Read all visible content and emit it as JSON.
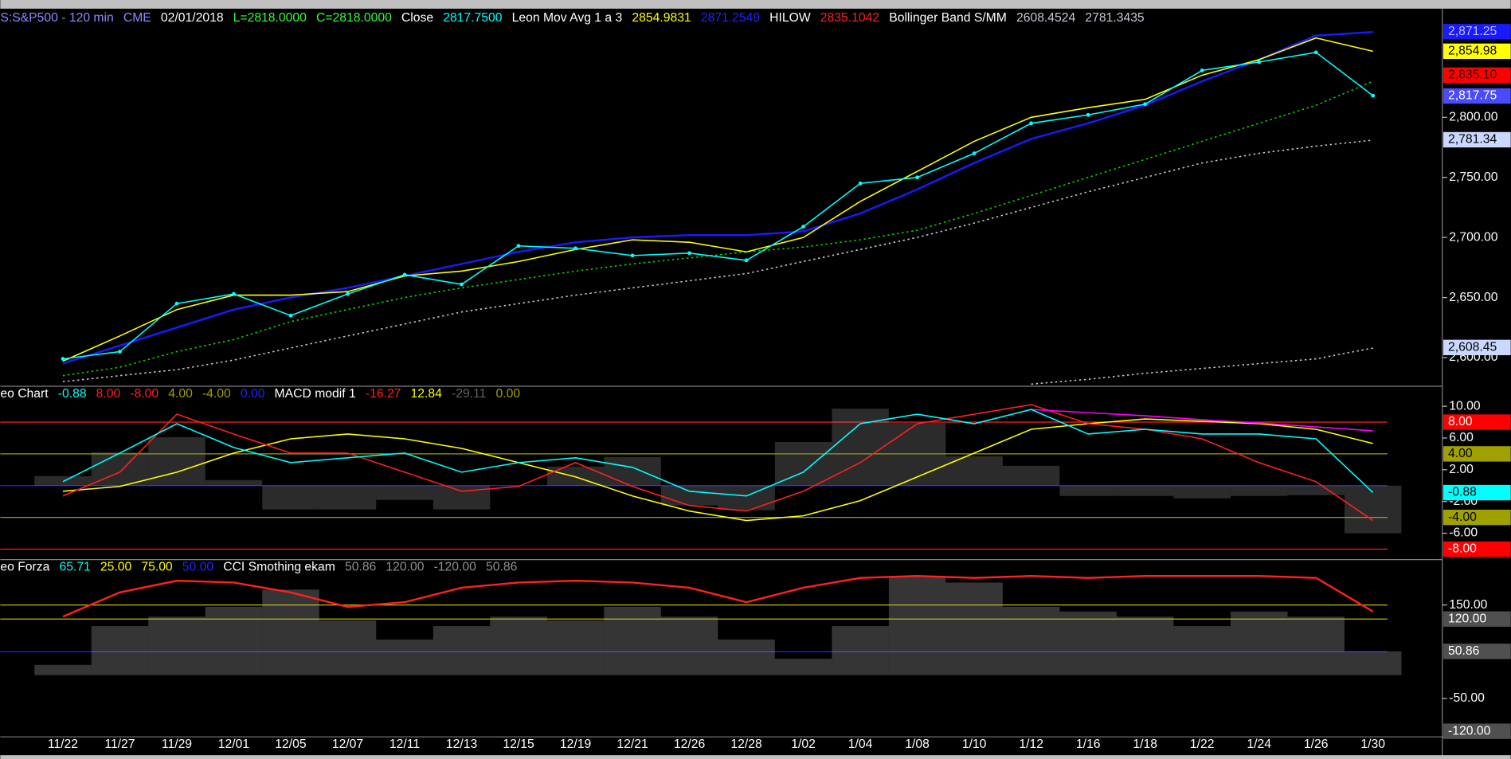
{
  "chart_data": [
    {
      "type": "line",
      "legend": [
        {
          "text": "S:S&P500 - 120 min",
          "color": "#8a8aff"
        },
        {
          "text": "CME",
          "color": "#8a8aff"
        },
        {
          "text": "02/01/2018",
          "color": "#ffffff"
        },
        {
          "text": "L=2818.0000",
          "color": "#33ff33"
        },
        {
          "text": "C=2818.0000",
          "color": "#33ff33"
        },
        {
          "text": "Close",
          "color": "#ffffff"
        },
        {
          "text": "2817.7500",
          "color": "#00ffff"
        },
        {
          "text": "Leon Mov Avg 1 a 3",
          "color": "#ffffff"
        },
        {
          "text": "2854.9831",
          "color": "#ffff00"
        },
        {
          "text": "2871.2549",
          "color": "#2222ff"
        },
        {
          "text": "HILOW",
          "color": "#ffffff"
        },
        {
          "text": "2835.1042",
          "color": "#ff2020"
        },
        {
          "text": "Bollinger Band S/MM",
          "color": "#ffffff"
        },
        {
          "text": "2608.4524",
          "color": "#c8c8d8"
        },
        {
          "text": "2781.3435",
          "color": "#c8c8d8"
        }
      ],
      "ylim": [
        2577,
        2888
      ],
      "yticks": [
        {
          "value": 2600,
          "label": "2,600.00"
        },
        {
          "value": 2650,
          "label": "2,650.00"
        },
        {
          "value": 2700,
          "label": "2,700.00"
        },
        {
          "value": 2750,
          "label": "2,750.00"
        },
        {
          "value": 2800,
          "label": "2,800.00"
        }
      ],
      "series": [
        {
          "color": "#c8c8d8",
          "dash": "2,3",
          "values": [
            2580,
            2585,
            2590,
            2598,
            2608,
            2618,
            2628,
            2638,
            2645,
            2652,
            2658,
            2664,
            2670,
            2680,
            2690,
            2700,
            2712,
            2725,
            2738,
            2750,
            2762,
            2770,
            2776,
            2781
          ]
        },
        {
          "color": "#c8c8d8",
          "dash": "2,3",
          "values": [
            null,
            null,
            null,
            null,
            null,
            null,
            null,
            null,
            null,
            null,
            null,
            null,
            null,
            null,
            null,
            null,
            null,
            2578,
            2582,
            2587,
            2591,
            2595,
            2599,
            2608
          ]
        },
        {
          "color": "#00dd00",
          "dash": "2,3",
          "values": [
            2585,
            2592,
            2605,
            2615,
            2630,
            2640,
            2650,
            2658,
            2665,
            2672,
            2678,
            2683,
            2688,
            2692,
            2698,
            2706,
            2720,
            2735,
            2750,
            2765,
            2780,
            2795,
            2810,
            2830
          ]
        },
        {
          "color": "#1a1aff",
          "width": 2,
          "values": [
            2595,
            2610,
            2625,
            2640,
            2650,
            2658,
            2668,
            2678,
            2688,
            2696,
            2700,
            2702,
            2702,
            2705,
            2720,
            2740,
            2762,
            2782,
            2795,
            2810,
            2830,
            2848,
            2868,
            2871
          ]
        },
        {
          "color": "#ffff00",
          "values": [
            2597,
            2618,
            2640,
            2652,
            2652,
            2655,
            2668,
            2672,
            2680,
            2690,
            2698,
            2696,
            2688,
            2700,
            2730,
            2755,
            2780,
            2800,
            2808,
            2815,
            2835,
            2848,
            2866,
            2855
          ]
        },
        {
          "color": "#00ffff",
          "dots": true,
          "values": [
            2599,
            2605,
            2645,
            2653,
            2635,
            2653,
            2669,
            2661,
            2693,
            2691,
            2685,
            2687,
            2681,
            2709,
            2745,
            2750,
            2770,
            2795,
            2802,
            2811,
            2839,
            2846,
            2854,
            2818
          ]
        }
      ],
      "markers": [
        {
          "label": "2,871.25",
          "value": 2871.25,
          "bg": "#1a1aff",
          "fg": "#c0c0ff"
        },
        {
          "label": "2,854.98",
          "value": 2854.98,
          "bg": "#ffff00",
          "fg": "#000000"
        },
        {
          "label": "2,835.10",
          "value": 2835.1,
          "bg": "#ff0000",
          "fg": "#300000"
        },
        {
          "label": "2,817.75",
          "value": 2817.75,
          "bg": "#4a4aff",
          "fg": "#ffffff"
        },
        {
          "label": "2,781.34",
          "value": 2781.34,
          "bg": "#c8d8ff",
          "fg": "#000000"
        },
        {
          "label": "2,608.45",
          "value": 2608.45,
          "bg": "#c8d8ff",
          "fg": "#000000"
        }
      ]
    },
    {
      "type": "line",
      "legend": [
        {
          "text": "eo Chart",
          "color": "#ffffff"
        },
        {
          "text": "-0.88",
          "color": "#00ffff"
        },
        {
          "text": "8.00",
          "color": "#ff2020"
        },
        {
          "text": "-8.00",
          "color": "#ff2020"
        },
        {
          "text": "4.00",
          "color": "#a0a000"
        },
        {
          "text": "-4.00",
          "color": "#a0a000"
        },
        {
          "text": "0.00",
          "color": "#2222ff"
        },
        {
          "text": "MACD modif 1",
          "color": "#ffffff"
        },
        {
          "text": "-16.27",
          "color": "#ff2020"
        },
        {
          "text": "12.84",
          "color": "#ffff00"
        },
        {
          "text": "-29.11",
          "color": "#606060"
        },
        {
          "text": "0.00",
          "color": "#a0a000"
        }
      ],
      "ylim": [
        -9.2,
        12.4
      ],
      "yticks": [
        {
          "value": 10,
          "label": "10.00"
        },
        {
          "value": 6,
          "label": "6.00"
        },
        {
          "value": 2,
          "label": "2.00"
        },
        {
          "value": -2,
          "label": "-2.00"
        },
        {
          "value": -6,
          "label": "-6.00"
        }
      ],
      "levels": [
        {
          "value": 8,
          "color": "#ff2020"
        },
        {
          "value": -8,
          "color": "#ff2020"
        },
        {
          "value": 4,
          "color": "#a0a000"
        },
        {
          "value": -4,
          "color": "#a0a000"
        },
        {
          "value": 0,
          "color": "#2222ff"
        }
      ],
      "series": [
        {
          "color": "#909090",
          "bars": true,
          "values": [
            1.2,
            4.2,
            6.1,
            0.7,
            -3,
            -3,
            -1.8,
            -3,
            0,
            2.4,
            3.6,
            -2.5,
            -3.1,
            5.5,
            9.7,
            7.9,
            3.7,
            2.5,
            -1.3,
            -1.3,
            -1.6,
            -1.3,
            -1.2,
            -6
          ]
        },
        {
          "color": "#ffff00",
          "values": [
            -0.7,
            -0.1,
            1.7,
            4.1,
            5.9,
            6.5,
            5.9,
            4.7,
            2.9,
            1.1,
            -1.3,
            -3.2,
            -4.4,
            -3.8,
            -1.9,
            1.1,
            4.1,
            7.1,
            7.8,
            8.4,
            8.1,
            7.8,
            7.1,
            5.3
          ]
        },
        {
          "color": "#ff2020",
          "values": [
            -1.3,
            1.7,
            9,
            6.5,
            4.1,
            4.1,
            1.7,
            -0.7,
            -0.1,
            2.9,
            -0.1,
            -2.5,
            -3.2,
            -0.7,
            2.9,
            7.8,
            9,
            10.2,
            7.8,
            7.1,
            5.9,
            2.9,
            0.5,
            -4.4
          ]
        },
        {
          "color": "#ff00ff",
          "values": [
            null,
            null,
            null,
            null,
            null,
            null,
            null,
            null,
            null,
            null,
            null,
            null,
            null,
            null,
            null,
            null,
            null,
            9.6,
            9.2,
            8.8,
            8.3,
            7.9,
            7.4,
            6.9
          ]
        },
        {
          "color": "#00ffff",
          "values": [
            0.5,
            4.1,
            7.8,
            4.8,
            2.9,
            3.5,
            4.1,
            1.7,
            2.9,
            3.5,
            2.3,
            -0.7,
            -1.3,
            1.7,
            7.8,
            9,
            7.8,
            9.6,
            6.5,
            7.1,
            6.5,
            6.5,
            5.9,
            -0.88
          ]
        }
      ],
      "markers": [
        {
          "label": "8.00",
          "value": 8,
          "bg": "#ff0000",
          "fg": "#ffffff"
        },
        {
          "label": "4.00",
          "value": 4,
          "bg": "#a0a000",
          "fg": "#000000"
        },
        {
          "label": "-0.88",
          "value": -0.88,
          "bg": "#00ffff",
          "fg": "#000000"
        },
        {
          "label": "-4.00",
          "value": -4,
          "bg": "#a0a000",
          "fg": "#000000"
        },
        {
          "label": "-8.00",
          "value": -8,
          "bg": "#ff0000",
          "fg": "#ffffff"
        }
      ]
    },
    {
      "type": "line",
      "legend": [
        {
          "text": "eo Forza",
          "color": "#ffffff"
        },
        {
          "text": "65.71",
          "color": "#00ffff"
        },
        {
          "text": "25.00",
          "color": "#ffff00"
        },
        {
          "text": "75.00",
          "color": "#ffff00"
        },
        {
          "text": "50.00",
          "color": "#2222ff"
        },
        {
          "text": "CCI Smothing ekam",
          "color": "#ffffff"
        },
        {
          "text": "50.86",
          "color": "#909090"
        },
        {
          "text": "120.00",
          "color": "#909090"
        },
        {
          "text": "-120.00",
          "color": "#909090"
        },
        {
          "text": "50.86",
          "color": "#909090"
        }
      ],
      "categories": [
        "11/22",
        "11/27",
        "11/29",
        "12/01",
        "12/05",
        "12/07",
        "12/11",
        "12/13",
        "12/15",
        "12/19",
        "12/21",
        "12/26",
        "12/28",
        "1/02",
        "1/04",
        "1/08",
        "1/10",
        "1/12",
        "1/16",
        "1/18",
        "1/22",
        "1/24",
        "1/26",
        "1/30"
      ],
      "ylim": [
        -132,
        245
      ],
      "yticks": [
        {
          "value": 150,
          "label": "150.00"
        },
        {
          "value": -50,
          "label": "-50.00"
        }
      ],
      "levels": [
        {
          "value": 150,
          "color": "#c0c000"
        },
        {
          "value": 120,
          "color": "#c0c000"
        },
        {
          "value": 50,
          "color": "#2222ff"
        }
      ],
      "series": [
        {
          "color": "#b0b0b0",
          "bars": true,
          "values": [
            22,
            105,
            125,
            146,
            183,
            117,
            76,
            105,
            125,
            117,
            146,
            125,
            76,
            35,
            105,
            212,
            198,
            146,
            136,
            125,
            105,
            136,
            125,
            50.86
          ]
        },
        {
          "color": "#ff2020",
          "width": 2,
          "values": [
            125,
            177,
            202,
            198,
            177,
            146,
            156,
            187,
            198,
            202,
            198,
            187,
            156,
            187,
            208,
            212,
            208,
            212,
            208,
            212,
            212,
            212,
            208,
            136
          ]
        }
      ],
      "markers": [
        {
          "label": "120.00",
          "value": 120,
          "bg": "#505050",
          "fg": "#ffffff"
        },
        {
          "label": "50.86",
          "value": 50.86,
          "bg": "#505050",
          "fg": "#ffffff"
        },
        {
          "label": "-120.00",
          "value": -120,
          "bg": "#505050",
          "fg": "#ffffff"
        }
      ]
    }
  ]
}
